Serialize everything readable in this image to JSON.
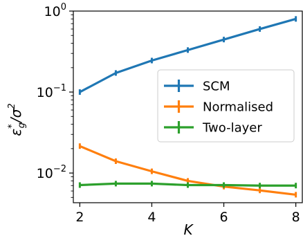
{
  "chart_data": {
    "type": "line",
    "xlabel": "K",
    "ylabel": "ε*g /σ²",
    "ylabel_parts": {
      "eps": "ε",
      "star": "*",
      "sub": "g",
      "slash": "/σ",
      "sq": "2"
    },
    "x_ticks": [
      2,
      4,
      6,
      8
    ],
    "xlim": [
      1.82,
      8.18
    ],
    "yscale": "log",
    "ylim": [
      0.0043,
      1.0
    ],
    "y_ticks": [
      {
        "value": 1.0,
        "base": "10",
        "exp": "0"
      },
      {
        "value": 0.1,
        "base": "10",
        "exp": "−1"
      },
      {
        "value": 0.01,
        "base": "10",
        "exp": "−2"
      }
    ],
    "legend_position": "center-right",
    "grid": false,
    "series": [
      {
        "name": "SCM",
        "color": "#1f77b4",
        "x": [
          2,
          3,
          4,
          5,
          6,
          7,
          8
        ],
        "y": [
          0.1,
          0.172,
          0.245,
          0.33,
          0.445,
          0.6,
          0.8
        ]
      },
      {
        "name": "Normalised",
        "color": "#ff7f0e",
        "x": [
          2,
          3,
          4,
          5,
          6,
          7,
          8
        ],
        "y": [
          0.0215,
          0.014,
          0.0105,
          0.008,
          0.0068,
          0.0061,
          0.0054
        ]
      },
      {
        "name": "Two-layer",
        "color": "#2ca02c",
        "x": [
          2,
          3,
          4,
          5,
          6,
          7,
          8
        ],
        "y": [
          0.0071,
          0.0074,
          0.0074,
          0.0071,
          0.0071,
          0.007,
          0.007
        ]
      }
    ]
  }
}
